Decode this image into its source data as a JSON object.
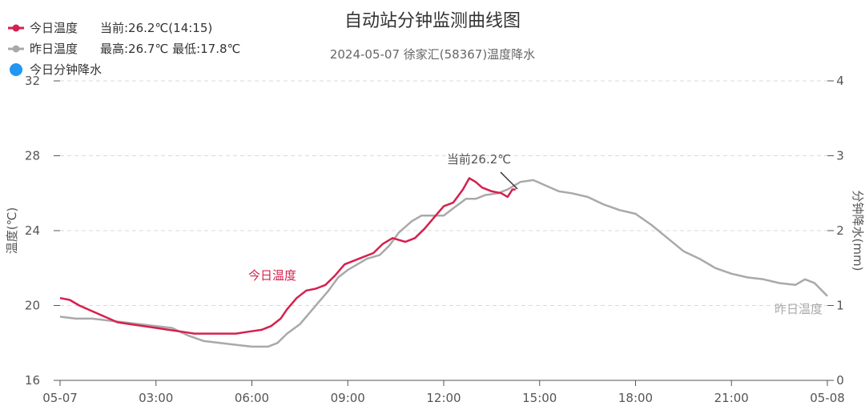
{
  "header": {
    "title": "自动站分钟监测曲线图",
    "subtitle": "2024-05-07 徐家汇(58367)温度降水"
  },
  "legend": [
    {
      "label": "今日温度",
      "info": "当前:26.2℃(14:15)",
      "color": "#d6204d",
      "marker": "line-dot"
    },
    {
      "label": "昨日温度",
      "info": "最高:26.7℃ 最低:17.8℃",
      "color": "#a9a9a9",
      "marker": "line-dot"
    },
    {
      "label": "今日分钟降水",
      "info": "",
      "color": "#2196f3",
      "marker": "dot"
    }
  ],
  "annotations": {
    "current": "当前26.2℃",
    "today_label": "今日温度",
    "yesterday_label": "昨日温度"
  },
  "chart_data": {
    "type": "line",
    "title": "自动站分钟监测曲线图",
    "subtitle": "2024-05-07 徐家汇(58367)温度降水",
    "x_unit": "hours since 2024-05-07 00:00",
    "xlim": [
      0,
      24
    ],
    "xticks": [
      {
        "x": 0,
        "label": "05-07"
      },
      {
        "x": 3,
        "label": "03:00"
      },
      {
        "x": 6,
        "label": "06:00"
      },
      {
        "x": 9,
        "label": "09:00"
      },
      {
        "x": 12,
        "label": "12:00"
      },
      {
        "x": 15,
        "label": "15:00"
      },
      {
        "x": 18,
        "label": "18:00"
      },
      {
        "x": 21,
        "label": "21:00"
      },
      {
        "x": 24,
        "label": "05-08"
      }
    ],
    "y_left": {
      "label": "温度(℃)",
      "lim": [
        16,
        32
      ],
      "ticks": [
        16,
        20,
        24,
        28,
        32
      ]
    },
    "y_right": {
      "label": "分钟降水(mm)",
      "lim": [
        0,
        4
      ],
      "ticks": [
        0,
        1,
        2,
        3,
        4
      ]
    },
    "series": [
      {
        "name": "今日温度",
        "color": "#d6204d",
        "axis": "left",
        "points": [
          [
            0,
            20.4
          ],
          [
            0.3,
            20.3
          ],
          [
            0.6,
            20.0
          ],
          [
            1.0,
            19.7
          ],
          [
            1.4,
            19.4
          ],
          [
            1.8,
            19.1
          ],
          [
            2.2,
            19.0
          ],
          [
            2.6,
            18.9
          ],
          [
            3.0,
            18.8
          ],
          [
            3.4,
            18.7
          ],
          [
            3.8,
            18.6
          ],
          [
            4.2,
            18.5
          ],
          [
            4.6,
            18.5
          ],
          [
            5.0,
            18.5
          ],
          [
            5.5,
            18.5
          ],
          [
            5.9,
            18.6
          ],
          [
            6.3,
            18.7
          ],
          [
            6.6,
            18.9
          ],
          [
            6.9,
            19.3
          ],
          [
            7.1,
            19.8
          ],
          [
            7.4,
            20.4
          ],
          [
            7.7,
            20.8
          ],
          [
            8.0,
            20.9
          ],
          [
            8.3,
            21.1
          ],
          [
            8.6,
            21.6
          ],
          [
            8.9,
            22.2
          ],
          [
            9.2,
            22.4
          ],
          [
            9.5,
            22.6
          ],
          [
            9.8,
            22.8
          ],
          [
            10.1,
            23.3
          ],
          [
            10.4,
            23.6
          ],
          [
            10.8,
            23.4
          ],
          [
            11.1,
            23.6
          ],
          [
            11.4,
            24.1
          ],
          [
            11.7,
            24.7
          ],
          [
            12.0,
            25.3
          ],
          [
            12.3,
            25.5
          ],
          [
            12.6,
            26.2
          ],
          [
            12.8,
            26.8
          ],
          [
            13.0,
            26.6
          ],
          [
            13.2,
            26.3
          ],
          [
            13.5,
            26.1
          ],
          [
            13.8,
            26.0
          ],
          [
            14.0,
            25.8
          ],
          [
            14.15,
            26.2
          ],
          [
            14.25,
            26.2
          ]
        ]
      },
      {
        "name": "昨日温度",
        "color": "#a9a9a9",
        "axis": "left",
        "points": [
          [
            0,
            19.4
          ],
          [
            0.5,
            19.3
          ],
          [
            1.0,
            19.3
          ],
          [
            1.5,
            19.2
          ],
          [
            2.0,
            19.1
          ],
          [
            2.5,
            19.0
          ],
          [
            3.0,
            18.9
          ],
          [
            3.5,
            18.8
          ],
          [
            4.0,
            18.4
          ],
          [
            4.5,
            18.1
          ],
          [
            5.0,
            18.0
          ],
          [
            5.5,
            17.9
          ],
          [
            6.0,
            17.8
          ],
          [
            6.5,
            17.8
          ],
          [
            6.8,
            18.0
          ],
          [
            7.1,
            18.5
          ],
          [
            7.5,
            19.0
          ],
          [
            7.8,
            19.6
          ],
          [
            8.1,
            20.2
          ],
          [
            8.4,
            20.8
          ],
          [
            8.7,
            21.5
          ],
          [
            9.0,
            21.9
          ],
          [
            9.3,
            22.2
          ],
          [
            9.6,
            22.5
          ],
          [
            10.0,
            22.7
          ],
          [
            10.3,
            23.2
          ],
          [
            10.6,
            23.9
          ],
          [
            11.0,
            24.5
          ],
          [
            11.3,
            24.8
          ],
          [
            11.7,
            24.8
          ],
          [
            12.0,
            24.8
          ],
          [
            12.3,
            25.2
          ],
          [
            12.7,
            25.7
          ],
          [
            13.0,
            25.7
          ],
          [
            13.3,
            25.9
          ],
          [
            13.7,
            26.0
          ],
          [
            14.0,
            26.2
          ],
          [
            14.4,
            26.6
          ],
          [
            14.8,
            26.7
          ],
          [
            15.2,
            26.4
          ],
          [
            15.6,
            26.1
          ],
          [
            16.0,
            26.0
          ],
          [
            16.5,
            25.8
          ],
          [
            17.0,
            25.4
          ],
          [
            17.5,
            25.1
          ],
          [
            18.0,
            24.9
          ],
          [
            18.5,
            24.3
          ],
          [
            19.0,
            23.6
          ],
          [
            19.5,
            22.9
          ],
          [
            20.0,
            22.5
          ],
          [
            20.5,
            22.0
          ],
          [
            21.0,
            21.7
          ],
          [
            21.5,
            21.5
          ],
          [
            22.0,
            21.4
          ],
          [
            22.5,
            21.2
          ],
          [
            23.0,
            21.1
          ],
          [
            23.3,
            21.4
          ],
          [
            23.6,
            21.2
          ],
          [
            24.0,
            20.5
          ]
        ]
      },
      {
        "name": "今日分钟降水",
        "color": "#2196f3",
        "axis": "right",
        "points": []
      }
    ],
    "grid": true,
    "legend_position": "top-left"
  }
}
